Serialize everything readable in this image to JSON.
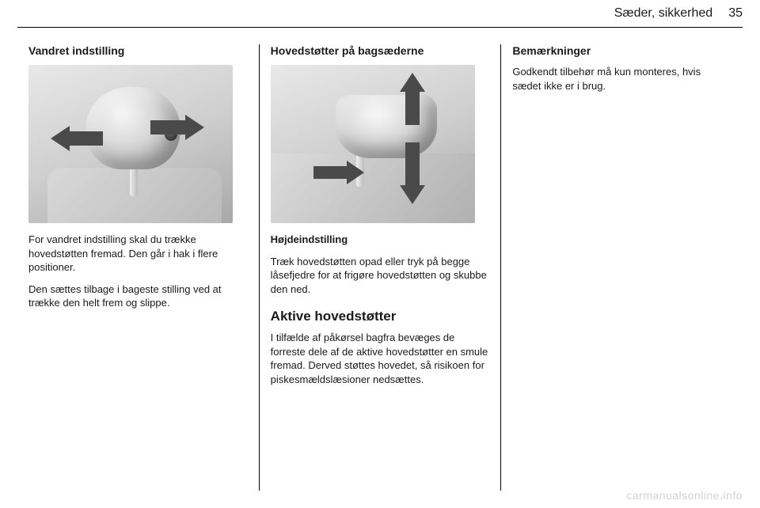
{
  "header": {
    "section": "Sæder, sikkerhed",
    "page": "35"
  },
  "col1": {
    "heading": "Vandret indstilling",
    "p1": "For vandret indstilling skal du trække hovedstøtten fremad. Den går i hak i flere positioner.",
    "p2": "Den sættes tilbage i bageste stilling ved at trække den helt frem og slippe."
  },
  "col2": {
    "heading": "Hovedstøtter på bagsæderne",
    "sub": "Højdeindstilling",
    "p1": "Træk hovedstøtten opad eller tryk på begge låsefjedre for at frigøre hoved­støtten og skubbe den ned.",
    "h2": "Aktive hovedstøtter",
    "p2": "I tilfælde af påkørsel bagfra bevæges de forreste dele af de aktive hoved­støtter en smule fremad. Derved støt­tes hovedet, så risikoen for piske­smældslæsioner nedsættes."
  },
  "col3": {
    "heading": "Bemærkninger",
    "p1": "Godkendt tilbehør må kun monteres, hvis sædet ikke er i brug."
  },
  "watermark": "carmanualsonline.info"
}
